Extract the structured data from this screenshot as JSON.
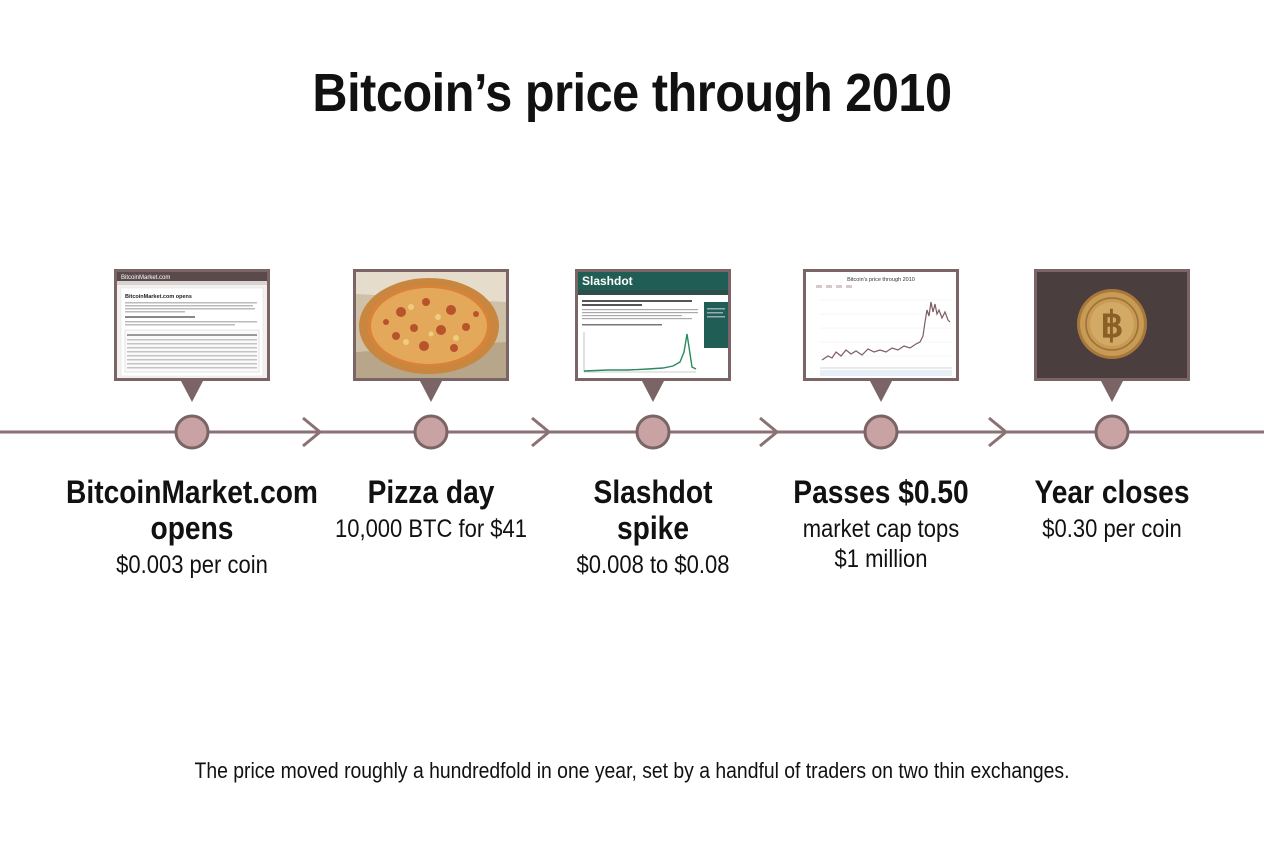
{
  "title": "Bitcoin’s price through 2010",
  "events": [
    {
      "heading": "BitcoinMarket.com opens",
      "detail": "$0.003 per coin",
      "image": "exchange-webpage-screenshot",
      "image_text": {
        "site": "BitcoinMarket.com",
        "headline": "BitcoinMarket.com opens"
      }
    },
    {
      "heading": "Pizza day",
      "detail": "10,000 BTC for $41",
      "image": "pizza-photo"
    },
    {
      "heading": "Slashdot spike",
      "detail": "$0.008 to $0.08",
      "image": "slashdot-article-screenshot",
      "image_text": {
        "site": "Slashdot"
      }
    },
    {
      "heading": "Passes $0.50",
      "detail": "market cap tops $1 million",
      "image": "price-chart-screenshot",
      "image_text": {
        "chart_title": "Bitcoin's price through 2010"
      }
    },
    {
      "heading": "Year closes",
      "detail": "$0.30 per coin",
      "image": "bitcoin-coin-photo"
    }
  ],
  "footnote": "The price moved roughly a hundredfold in one year, set by a handful of traders on two thin exchanges.",
  "colors": {
    "line": "#8a7274",
    "node_fill": "#c9a3a3",
    "node_stroke": "#7a6466",
    "thumb_border": "#7a6466",
    "slashdot_green": "#1f5d55",
    "chart_line": "#7d5d61"
  }
}
